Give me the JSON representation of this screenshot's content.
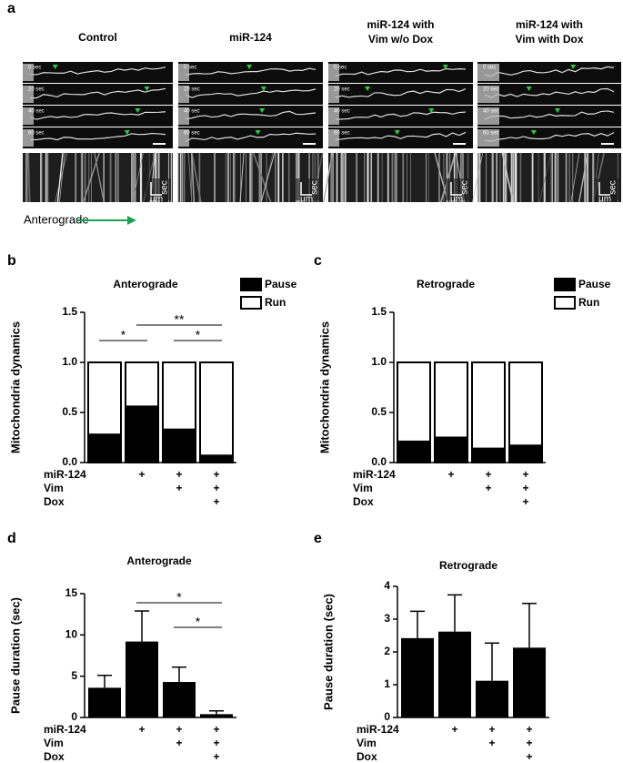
{
  "panel_a": {
    "label": "a",
    "columns": [
      {
        "lines": [
          "Control"
        ]
      },
      {
        "lines": [
          "miR-124"
        ]
      },
      {
        "lines": [
          "miR-124 with",
          "Vim w/o Dox"
        ]
      },
      {
        "lines": [
          "miR-124 with",
          "Vim with Dox"
        ]
      }
    ],
    "time_labels": [
      "0 sec",
      "20 sec",
      "40 sec",
      "60 sec"
    ],
    "kymograph_time_unit": "sec",
    "kymograph_distance_unit": "µm",
    "direction_label": "Anterograde"
  },
  "chart_data": [
    {
      "type": "stacked_bar",
      "label": "b",
      "title": "Anterograde",
      "y_label": "Mitochondria dynamics",
      "categories": [
        null,
        null,
        null,
        null
      ],
      "series": [
        {
          "name": "Pause",
          "color": "#000000",
          "values": [
            0.28,
            0.56,
            0.33,
            0.07
          ]
        },
        {
          "name": "Run",
          "color": "#ffffff",
          "values": [
            0.72,
            0.44,
            0.67,
            0.93
          ]
        }
      ],
      "ylim": [
        0,
        1.5
      ],
      "yticks": [
        {
          "value": 0,
          "label": "0.0"
        },
        {
          "value": 0.5,
          "label": "0.5"
        },
        {
          "value": 1,
          "label": "1.0"
        },
        {
          "value": 1.5,
          "label": "1.5"
        }
      ],
      "conditions": [
        {
          "name": "miR-124",
          "marks": [
            null,
            "+",
            "+",
            "+"
          ]
        },
        {
          "name": "Vim",
          "marks": [
            null,
            null,
            "+",
            "+"
          ]
        },
        {
          "name": "Dox",
          "marks": [
            null,
            null,
            null,
            "+"
          ]
        }
      ],
      "annotations": [
        {
          "text": "*",
          "from": 0,
          "to": 1
        },
        {
          "text": "**",
          "from": 1,
          "to": 3
        },
        {
          "text": "*",
          "from": 2,
          "to": 3
        }
      ]
    },
    {
      "type": "stacked_bar",
      "label": "c",
      "title": "Retrograde",
      "y_label": "Mitochondria dynamics",
      "categories": [
        null,
        null,
        null,
        null
      ],
      "series": [
        {
          "name": "Pause",
          "color": "#000000",
          "values": [
            0.21,
            0.25,
            0.14,
            0.17
          ]
        },
        {
          "name": "Run",
          "color": "#ffffff",
          "values": [
            0.79,
            0.75,
            0.86,
            0.83
          ]
        }
      ],
      "ylim": [
        0,
        1.5
      ],
      "yticks": [
        {
          "value": 0,
          "label": "0.0"
        },
        {
          "value": 0.5,
          "label": "0.5"
        },
        {
          "value": 1,
          "label": "1.0"
        },
        {
          "value": 1.5,
          "label": "1.5"
        }
      ],
      "conditions": [
        {
          "name": "miR-124",
          "marks": [
            null,
            "+",
            "+",
            "+"
          ]
        },
        {
          "name": "Vim",
          "marks": [
            null,
            null,
            "+",
            "+"
          ]
        },
        {
          "name": "Dox",
          "marks": [
            null,
            null,
            null,
            "+"
          ]
        }
      ]
    },
    {
      "type": "error_bar",
      "label": "d",
      "title": "Anterograde",
      "y_label": "Pause duration (sec)",
      "categories": [
        null,
        null,
        null,
        null
      ],
      "color": "#000000",
      "values": [
        3.6,
        9.2,
        4.3,
        0.4
      ],
      "errors": [
        1.5,
        3.7,
        1.8,
        0.4
      ],
      "ylim": [
        0,
        15
      ],
      "yticks": [
        0,
        5,
        10,
        15
      ],
      "conditions": [
        {
          "name": "miR-124",
          "marks": [
            null,
            "+",
            "+",
            "+"
          ]
        },
        {
          "name": "Vim",
          "marks": [
            null,
            null,
            "+",
            "+"
          ]
        },
        {
          "name": "Dox",
          "marks": [
            null,
            null,
            null,
            "+"
          ]
        }
      ],
      "annotations": [
        {
          "text": "*",
          "from": 1,
          "to": 3
        },
        {
          "text": "*",
          "from": 2,
          "to": 3
        }
      ]
    },
    {
      "type": "error_bar",
      "label": "e",
      "title": "Retrograde",
      "y_label": "Pause duration (sec)",
      "categories": [
        null,
        null,
        null,
        null
      ],
      "color": "#000000",
      "values": [
        2.42,
        2.62,
        1.12,
        2.13
      ],
      "errors": [
        0.82,
        1.12,
        1.15,
        1.35
      ],
      "ylim": [
        0,
        4
      ],
      "yticks": [
        0,
        1,
        2,
        3,
        4
      ],
      "conditions": [
        {
          "name": "miR-124",
          "marks": [
            null,
            "+",
            "+",
            "+"
          ]
        },
        {
          "name": "Vim",
          "marks": [
            null,
            null,
            "+",
            "+"
          ]
        },
        {
          "name": "Dox",
          "marks": [
            null,
            null,
            null,
            "+"
          ]
        }
      ]
    }
  ]
}
